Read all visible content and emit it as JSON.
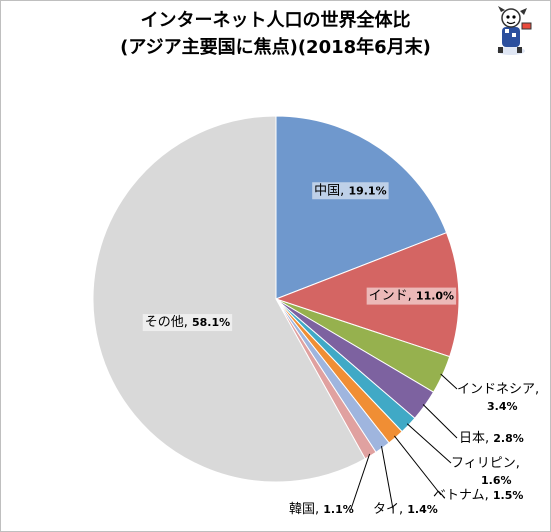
{
  "title_line1": "インターネット人口の世界全体比",
  "title_line2": "(アジア主要国に焦点)(2018年6月末)",
  "chart_data": {
    "type": "pie",
    "title": "インターネット人口の世界全体比 (アジア主要国に焦点)(2018年6月末)",
    "start_angle_deg": 0,
    "direction": "clockwise",
    "categories": [
      "中国",
      "インド",
      "インドネシア",
      "日本",
      "フィリピン",
      "ベトナム",
      "タイ",
      "韓国",
      "その他"
    ],
    "values": [
      19.1,
      11.0,
      3.4,
      2.8,
      1.6,
      1.5,
      1.4,
      1.1,
      58.1
    ],
    "value_labels": [
      "19.1%",
      "11.0%",
      "3.4%",
      "2.8%",
      "1.6%",
      "1.5%",
      "1.4%",
      "1.1%",
      "58.1%"
    ],
    "colors": [
      "#6f98cd",
      "#d46563",
      "#96b14e",
      "#7d62a0",
      "#40a9c6",
      "#f08e34",
      "#9fb5de",
      "#e0a1a0",
      "#d9d9d9"
    ],
    "legend": "none"
  }
}
